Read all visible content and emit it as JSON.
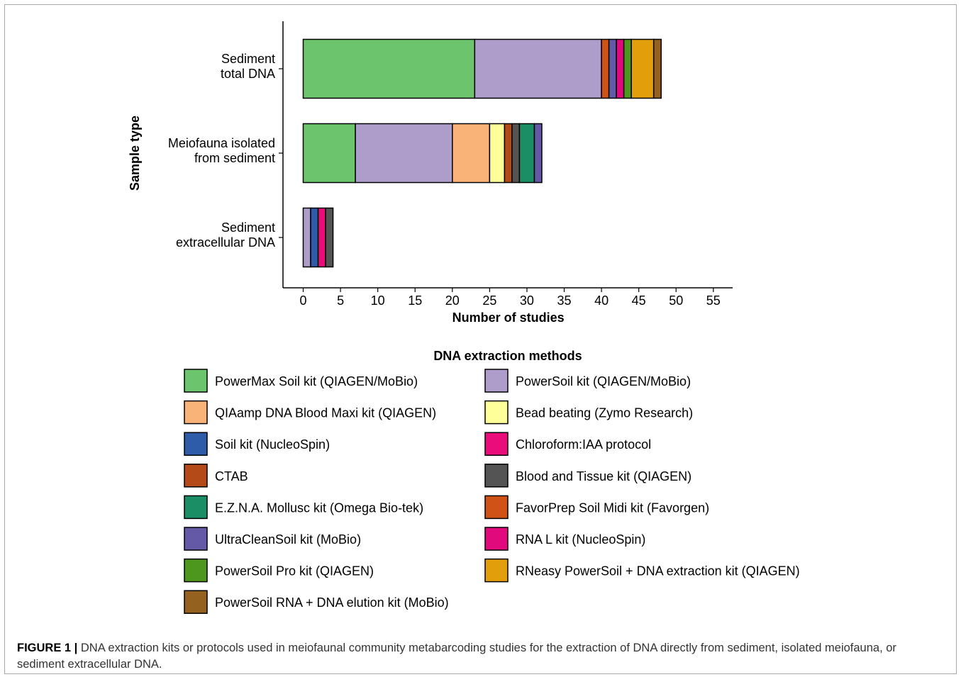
{
  "chart_data": {
    "type": "bar",
    "orientation": "horizontal",
    "stacked": true,
    "ylabel": "Sample type",
    "xlabel": "Number of studies",
    "xlim": [
      0,
      57
    ],
    "xticks": [
      "0",
      "5",
      "10",
      "15",
      "20",
      "25",
      "30",
      "35",
      "40",
      "45",
      "50",
      "55"
    ],
    "categories": [
      [
        "Sediment",
        "total DNA"
      ],
      [
        "Meiofauna isolated",
        "from sediment"
      ],
      [
        "Sediment",
        "extracellular DNA"
      ]
    ],
    "legend_title": "DNA extraction methods",
    "series": [
      {
        "name": "PowerMax Soil kit (QIAGEN/MoBio)",
        "color": "#6cc46c",
        "values": [
          23,
          7,
          0
        ]
      },
      {
        "name": "PowerSoil kit (QIAGEN/MoBio)",
        "color": "#ae9ccb",
        "values": [
          17,
          13,
          1
        ]
      },
      {
        "name": "QIAamp DNA Blood Maxi kit (QIAGEN)",
        "color": "#f9b278",
        "values": [
          0,
          5,
          0
        ]
      },
      {
        "name": "Bead beating (Zymo Research)",
        "color": "#ffff99",
        "values": [
          0,
          2,
          0
        ]
      },
      {
        "name": "Soil kit (NucleoSpin)",
        "color": "#2f5ca8",
        "values": [
          0,
          0,
          1
        ]
      },
      {
        "name": "Chloroform:IAA protocol",
        "color": "#ea0c7a",
        "values": [
          0,
          0,
          1
        ]
      },
      {
        "name": "CTAB",
        "color": "#b54a19",
        "values": [
          0,
          1,
          0
        ]
      },
      {
        "name": "Blood and Tissue kit (QIAGEN)",
        "color": "#545454",
        "values": [
          0,
          1,
          1
        ]
      },
      {
        "name": "E.Z.N.A. Mollusc kit (Omega Bio-tek)",
        "color": "#1b8e66",
        "values": [
          0,
          2,
          0
        ]
      },
      {
        "name": "FavorPrep Soil Midi kit (Favorgen)",
        "color": "#d15217",
        "values": [
          1,
          0,
          0
        ]
      },
      {
        "name": "UltraCleanSoil kit (MoBio)",
        "color": "#6459a6",
        "values": [
          1,
          1,
          0
        ]
      },
      {
        "name": "RNA L kit (NucleoSpin)",
        "color": "#e00a7c",
        "values": [
          1,
          0,
          0
        ]
      },
      {
        "name": "PowerSoil Pro kit (QIAGEN)",
        "color": "#4e971f",
        "values": [
          1,
          0,
          0
        ]
      },
      {
        "name": "RNeasy PowerSoil + DNA extraction kit (QIAGEN)",
        "color": "#e39e0c",
        "values": [
          3,
          0,
          0
        ]
      },
      {
        "name": "PowerSoil RNA + DNA elution kit (MoBio)",
        "color": "#94611e",
        "values": [
          1,
          0,
          0
        ]
      }
    ],
    "legend_placement": "bottom"
  },
  "caption": {
    "label": "FIGURE 1 |",
    "text": "DNA extraction kits or protocols used in meiofaunal community metabarcoding studies for the extraction of DNA directly from sediment, isolated meiofauna, or sediment extracellular DNA."
  }
}
